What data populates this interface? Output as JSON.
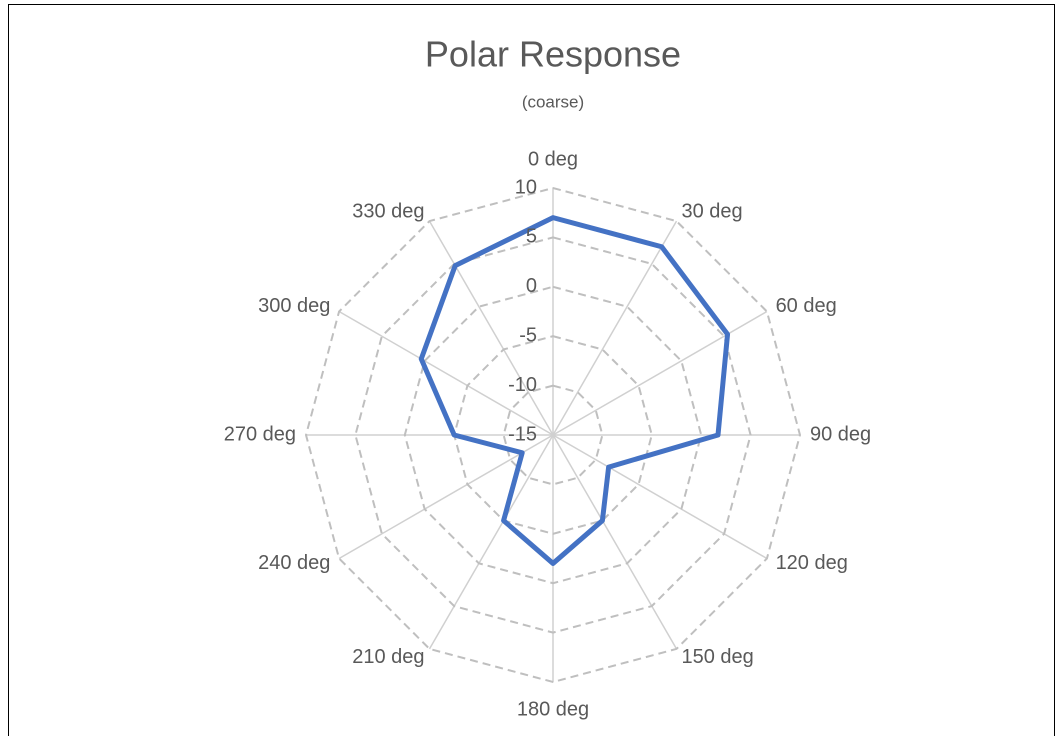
{
  "chart_data": {
    "type": "radar",
    "title": "Polar Response",
    "subtitle": "(coarse)",
    "categories": [
      "0 deg",
      "30 deg",
      "60 deg",
      "90 deg",
      "120 deg",
      "150 deg",
      "180 deg",
      "210 deg",
      "240 deg",
      "270 deg",
      "300 deg",
      "330 deg"
    ],
    "values": [
      7,
      7,
      5.4,
      1.7,
      -8.5,
      -5,
      -2,
      -5,
      -11.4,
      -5,
      0.4,
      4.8
    ],
    "color": "#4472c4",
    "ylim": [
      -15,
      10
    ],
    "yticks": [
      -15,
      -10,
      -5,
      0,
      5,
      10
    ],
    "grid": true
  }
}
